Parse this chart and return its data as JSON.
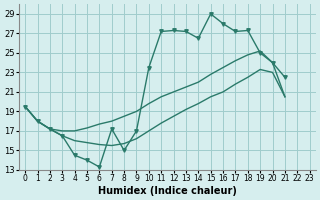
{
  "xlabel": "Humidex (Indice chaleur)",
  "ylabel": "",
  "bg_color": "#d6eeee",
  "grid_color": "#a0cccc",
  "line_color": "#2a7a6a",
  "xlim": [
    -0.5,
    23.5
  ],
  "ylim": [
    13,
    30
  ],
  "yticks": [
    13,
    15,
    17,
    19,
    21,
    23,
    25,
    27,
    29
  ],
  "xticks": [
    0,
    1,
    2,
    3,
    4,
    5,
    6,
    7,
    8,
    9,
    10,
    11,
    12,
    13,
    14,
    15,
    16,
    17,
    18,
    19,
    20,
    21,
    22,
    23
  ],
  "line1_x": [
    0,
    1,
    2,
    3,
    4,
    5,
    6,
    7,
    8,
    9,
    10,
    11,
    12,
    13,
    14,
    15,
    16,
    17,
    18,
    19,
    20,
    21,
    22,
    23
  ],
  "line1_y": [
    19.5,
    18.0,
    17.2,
    16.5,
    14.5,
    14.0,
    13.3,
    17.2,
    15.0,
    17.0,
    23.5,
    27.2,
    27.3,
    27.2,
    26.5,
    29.0,
    28.0,
    27.2,
    27.3,
    25.0,
    24.0,
    22.5,
    null,
    null
  ],
  "line2_x": [
    0,
    1,
    2,
    3,
    4,
    5,
    6,
    7,
    8,
    9,
    10,
    11,
    12,
    13,
    14,
    15,
    16,
    17,
    18,
    19,
    20,
    21,
    22,
    23
  ],
  "line2_y": [
    19.5,
    18.0,
    17.2,
    17.0,
    17.0,
    17.3,
    17.7,
    18.0,
    18.5,
    19.0,
    19.8,
    20.5,
    21.0,
    21.5,
    22.0,
    22.8,
    23.5,
    24.2,
    24.8,
    25.2,
    24.0,
    20.5,
    null,
    null
  ],
  "line3_x": [
    0,
    1,
    2,
    3,
    4,
    5,
    6,
    7,
    8,
    9,
    10,
    11,
    12,
    13,
    14,
    15,
    16,
    17,
    18,
    19,
    20,
    21,
    22,
    23
  ],
  "line3_y": [
    19.5,
    18.0,
    17.2,
    16.5,
    16.0,
    15.8,
    15.6,
    15.5,
    15.7,
    16.2,
    17.0,
    17.8,
    18.5,
    19.2,
    19.8,
    20.5,
    21.0,
    21.8,
    22.5,
    23.3,
    23.0,
    20.5,
    null,
    null
  ]
}
